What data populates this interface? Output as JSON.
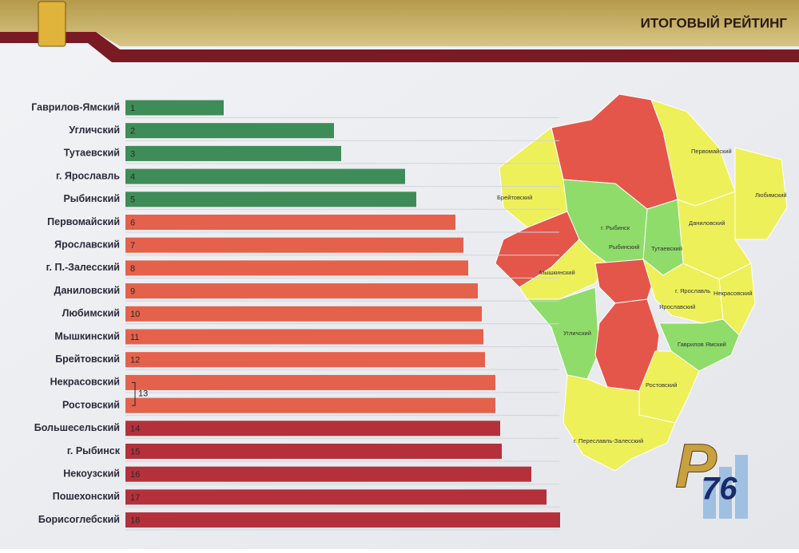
{
  "chart_data": {
    "type": "hbar",
    "title": "ИТОГОВЫЙ РЕЙТИНГ",
    "categories": [
      "Гаврилов-Ямский",
      "Угличский",
      "Тутаевский",
      "г. Ярославль",
      "Рыбинский",
      "Первомайский",
      "Ярославский",
      "г. П.-Залесский",
      "Даниловский",
      "Любимский",
      "Мышкинский",
      "Брейтовский",
      "Некрасовский",
      "Ростовский",
      "Большесельский",
      "г. Рыбинск",
      "Некоузский",
      "Пошехонский",
      "Борисоглебский"
    ],
    "values": [
      123,
      261,
      270,
      350,
      364,
      413,
      423,
      429,
      441,
      446,
      448,
      450,
      463,
      463,
      469,
      471,
      508,
      527,
      544
    ],
    "ranks": [
      1,
      2,
      3,
      4,
      5,
      6,
      7,
      8,
      9,
      10,
      11,
      12,
      null,
      null,
      14,
      15,
      16,
      17,
      18
    ],
    "tie_rank": 13,
    "colors": [
      "#3e8c57",
      "#3e8c57",
      "#3e8c57",
      "#3e8c57",
      "#3e8c57",
      "#e4614b",
      "#e4614b",
      "#e4614b",
      "#e4614b",
      "#e4614b",
      "#e4614b",
      "#e4614b",
      "#e4614b",
      "#e4614b",
      "#b4303a",
      "#b4303a",
      "#b4303a",
      "#b4303a",
      "#b4303a"
    ],
    "xlim": [
      0,
      600
    ]
  },
  "map": {
    "labels": [
      "Первомайский",
      "Любимский",
      "Брейтовский",
      "Даниловский",
      "г. Рыбинск",
      "Рыбинский",
      "Тутаевский",
      "Мышкинский",
      "г. Ярославль",
      "Некрасовский",
      "Ярославский",
      "Угличский",
      "Гаврилов Ямский",
      "Ростовский",
      "г. Переславль-Залесский"
    ],
    "logo": [
      "Р",
      "76"
    ]
  }
}
